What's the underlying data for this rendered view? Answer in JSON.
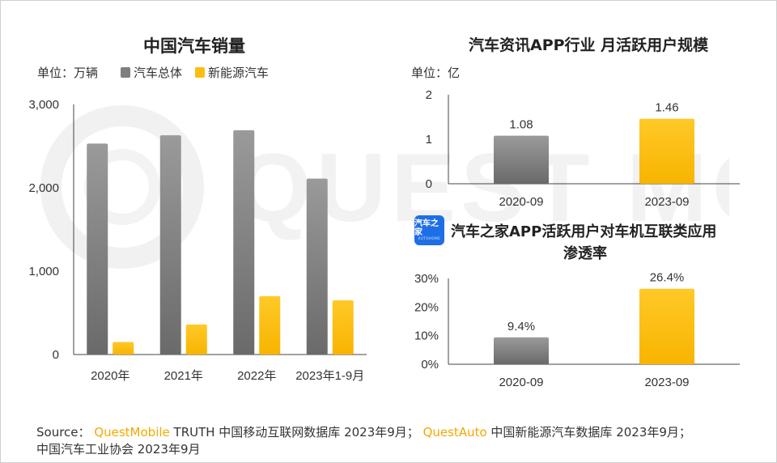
{
  "colors": {
    "gray_top": "#9a9a9a",
    "gray_bottom": "#6a6a6a",
    "yellow_top": "#ffc928",
    "yellow_bottom": "#f8b400",
    "brand_orange": "#f5a800",
    "icon_blue": "#1e6fe6"
  },
  "watermark": {
    "text": "QUEST MOBILE"
  },
  "left_chart": {
    "title": "中国汽车销量",
    "unit": "单位：万辆",
    "legend": [
      "汽车总体",
      "新能源汽车"
    ]
  },
  "top_right_chart": {
    "title": "汽车资讯APP行业 月活跃用户规模",
    "unit": "单位：亿"
  },
  "bottom_right_chart": {
    "title_line1": "汽车之家APP活跃用户对车机互联类应用",
    "title_line2": "渗透率",
    "icon_text": "汽车之家",
    "icon_subtext": "AUTOHOME",
    "icon_name": "autohome-logo-icon"
  },
  "source": {
    "prefix": "Source：",
    "brand1": "QuestMobile",
    "text1": " TRUTH 中国移动互联网数据库 2023年9月；",
    "brand2": "QuestAuto",
    "text2": " 中国新能源汽车数据库 2023年9月；",
    "line2": "中国汽车工业协会 2023年9月"
  },
  "chart_data": [
    {
      "type": "bar",
      "title": "中国汽车销量",
      "ylabel": "单位：万辆",
      "categories": [
        "2020年",
        "2021年",
        "2022年",
        "2023年1-9月"
      ],
      "series": [
        {
          "name": "汽车总体",
          "values": [
            2530,
            2630,
            2690,
            2110
          ]
        },
        {
          "name": "新能源汽车",
          "values": [
            150,
            360,
            700,
            650
          ]
        }
      ],
      "ylim": [
        0,
        3000
      ],
      "yticks": [
        0,
        1000,
        2000,
        3000
      ],
      "ytick_labels": [
        "0",
        "1,000",
        "2,000",
        "3,000"
      ],
      "grid": false,
      "legend": "top-left"
    },
    {
      "type": "bar",
      "title": "汽车资讯APP行业 月活跃用户规模",
      "ylabel": "单位：亿",
      "categories": [
        "2020-09",
        "2023-09"
      ],
      "values": [
        1.08,
        1.46
      ],
      "value_labels": [
        "1.08",
        "1.46"
      ],
      "ylim": [
        0,
        2
      ],
      "yticks": [
        0,
        1,
        2
      ],
      "ytick_labels": [
        "0",
        "1",
        "2"
      ],
      "grid": false
    },
    {
      "type": "bar",
      "title": "汽车之家APP活跃用户对车机互联类应用渗透率",
      "categories": [
        "2020-09",
        "2023-09"
      ],
      "values": [
        9.4,
        26.4
      ],
      "value_labels": [
        "9.4%",
        "26.4%"
      ],
      "ylim": [
        0,
        30
      ],
      "yticks": [
        0,
        10,
        20,
        30
      ],
      "ytick_labels": [
        "0%",
        "10%",
        "20%",
        "30%"
      ],
      "grid": false
    }
  ]
}
